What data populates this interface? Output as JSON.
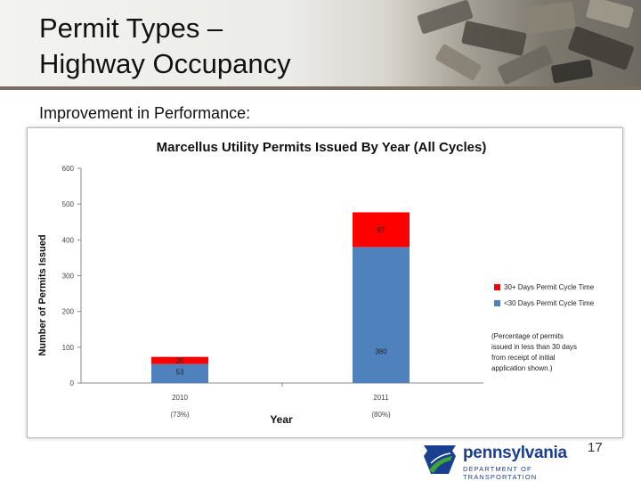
{
  "slide": {
    "title_line1": "Permit Types –",
    "title_line2": "Highway Occupancy",
    "subtitle": "Improvement in Performance:",
    "page_number": "17"
  },
  "logo": {
    "name": "pennsylvania",
    "department": "DEPARTMENT OF TRANSPORTATION",
    "icon": "keystone-logo-icon"
  },
  "colors": {
    "under30": "#4f81bd",
    "over30": "#ff0000",
    "logo_blue": "#1b3f8f",
    "logo_green": "#3fa535"
  },
  "chart_data": {
    "type": "bar",
    "stacked": true,
    "title": "Marcellus Utility Permits Issued By Year (All Cycles)",
    "xlabel": "Year",
    "ylabel": "Number of Permits Issued",
    "ylim": [
      0,
      600
    ],
    "yticks": [
      0,
      100,
      200,
      300,
      400,
      500,
      600
    ],
    "categories": [
      "2010",
      "2011"
    ],
    "category_notes": [
      "(73%)",
      "(80%)"
    ],
    "series": [
      {
        "name": "<30 Days Permit Cycle Time",
        "values": [
          53,
          380
        ],
        "labels": [
          "53",
          "380"
        ],
        "color": "#4f81bd"
      },
      {
        "name": "30+ Days Permit Cycle Time",
        "values": [
          20,
          97
        ],
        "labels": [
          "20",
          "97"
        ],
        "color": "#ff0000"
      }
    ],
    "legend_position": "right",
    "annotation": [
      "(Percentage of permits",
      "issued in less than 30 days",
      "from receipt of initial",
      "application shown.)"
    ],
    "grid": false
  }
}
